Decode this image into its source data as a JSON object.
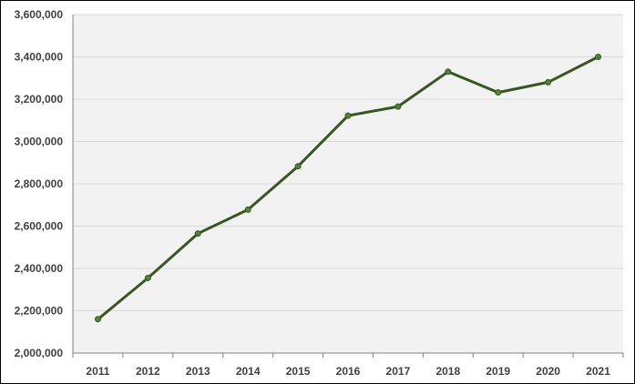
{
  "chart_data": {
    "type": "line",
    "title": "",
    "xlabel": "",
    "ylabel": "",
    "x": [
      "2011",
      "2012",
      "2013",
      "2014",
      "2015",
      "2016",
      "2017",
      "2018",
      "2019",
      "2020",
      "2021"
    ],
    "series": [
      {
        "values": [
          2160000,
          2355000,
          2565000,
          2678000,
          2883000,
          3122000,
          3165000,
          3330000,
          3232000,
          3280000,
          3400000
        ]
      }
    ],
    "ylim": [
      2000000,
      3600000
    ],
    "yticks": [
      2000000,
      2200000,
      2400000,
      2600000,
      2800000,
      3000000,
      3200000,
      3400000,
      3600000
    ],
    "ytick_labels": [
      "2,000,000",
      "2,200,000",
      "2,400,000",
      "2,600,000",
      "2,800,000",
      "3,000,000",
      "3,200,000",
      "3,400,000",
      "3,600,000"
    ],
    "grid": true,
    "legend": "none",
    "colors": {
      "line": "#375623",
      "marker": "#548235",
      "plot_background": "#f2f2f2",
      "gridline": "#d9d9d9",
      "axis": "#808080",
      "text": "#404040"
    }
  }
}
